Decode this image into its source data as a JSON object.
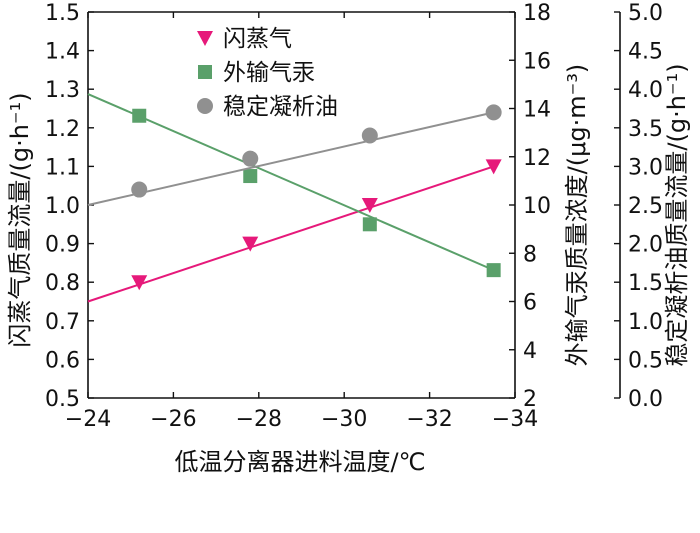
{
  "chart_data": {
    "type": "line",
    "xlabel": "低温分离器进料温度/℃",
    "x_ticks": [
      "−24",
      "−26",
      "−28",
      "−30",
      "−32",
      "−34"
    ],
    "xlim": [
      -24,
      -34
    ],
    "axes": {
      "left": {
        "label": "闪蒸气质量流量/(g·h⁻¹)",
        "ylim": [
          0.5,
          1.5
        ],
        "ticks": [
          "0.5",
          "0.6",
          "0.7",
          "0.8",
          "0.9",
          "1.0",
          "1.1",
          "1.2",
          "1.3",
          "1.4",
          "1.5"
        ]
      },
      "right1": {
        "label": "外输气汞质量浓度/(μg·m⁻³)",
        "ylim": [
          2,
          18
        ],
        "ticks": [
          "2",
          "4",
          "6",
          "8",
          "10",
          "12",
          "14",
          "16",
          "18"
        ]
      },
      "right2": {
        "label": "稳定凝析油质量流量/(g·h⁻¹)",
        "ylim": [
          0.0,
          5.0
        ],
        "ticks": [
          "0.0",
          "0.5",
          "1.0",
          "1.5",
          "2.0",
          "2.5",
          "3.0",
          "3.5",
          "4.0",
          "4.5",
          "5.0"
        ]
      }
    },
    "legend_position": "top-center",
    "grid": false,
    "series": [
      {
        "name": "闪蒸气",
        "axis": "left",
        "color": "#e6197a",
        "marker": "triangle-down",
        "x": [
          -25.2,
          -27.8,
          -30.6,
          -33.5
        ],
        "y": [
          0.8,
          0.9,
          1.0,
          1.1
        ],
        "line_x": [
          -24,
          -33.5
        ],
        "line_y": [
          0.75,
          1.1
        ]
      },
      {
        "name": "外输气汞",
        "axis": "right1",
        "color": "#5aa06a",
        "marker": "square",
        "x": [
          -25.2,
          -27.8,
          -30.6,
          -33.5
        ],
        "y": [
          13.7,
          11.2,
          9.2,
          7.3
        ],
        "line_x": [
          -24,
          -33.5
        ],
        "line_y": [
          14.6,
          7.3
        ]
      },
      {
        "name": "稳定凝析油",
        "axis": "right2",
        "color": "#909090",
        "marker": "circle",
        "x": [
          -25.2,
          -27.8,
          -30.6,
          -33.5
        ],
        "y": [
          2.7,
          3.1,
          3.4,
          3.7
        ],
        "line_x": [
          -24,
          -33.5
        ],
        "line_y": [
          2.5,
          3.7
        ]
      }
    ]
  }
}
